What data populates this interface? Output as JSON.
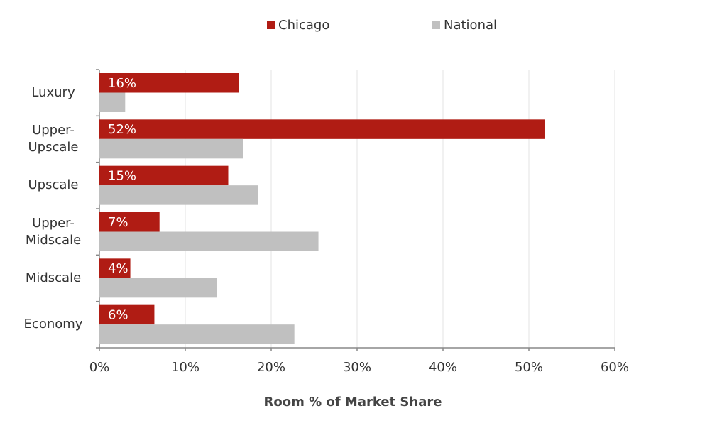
{
  "chart_data": {
    "type": "hbar",
    "categories": [
      "Luxury",
      "Upper-Upscale",
      "Upscale",
      "Upper-Midscale",
      "Midscale",
      "Economy"
    ],
    "series": [
      {
        "name": "Chicago",
        "color": "#b01c14",
        "values": [
          16.2,
          51.9,
          15.0,
          7.0,
          3.6,
          6.4
        ],
        "value_labels": [
          "16%",
          "52%",
          "15%",
          "7%",
          "4%",
          "6%"
        ]
      },
      {
        "name": "National",
        "color": "#c0c0c0",
        "values": [
          3.0,
          16.7,
          18.5,
          25.5,
          13.7,
          22.7
        ]
      }
    ],
    "xlabel": "Room % of Market Share",
    "xlim": [
      0,
      60
    ],
    "xticks": [
      {
        "value": 0,
        "label": "0%"
      },
      {
        "value": 10,
        "label": "10%"
      },
      {
        "value": 20,
        "label": "20%"
      },
      {
        "value": 30,
        "label": "30%"
      },
      {
        "value": 40,
        "label": "40%"
      },
      {
        "value": 50,
        "label": "50%"
      },
      {
        "value": 60,
        "label": "60%"
      }
    ],
    "grid": true
  }
}
